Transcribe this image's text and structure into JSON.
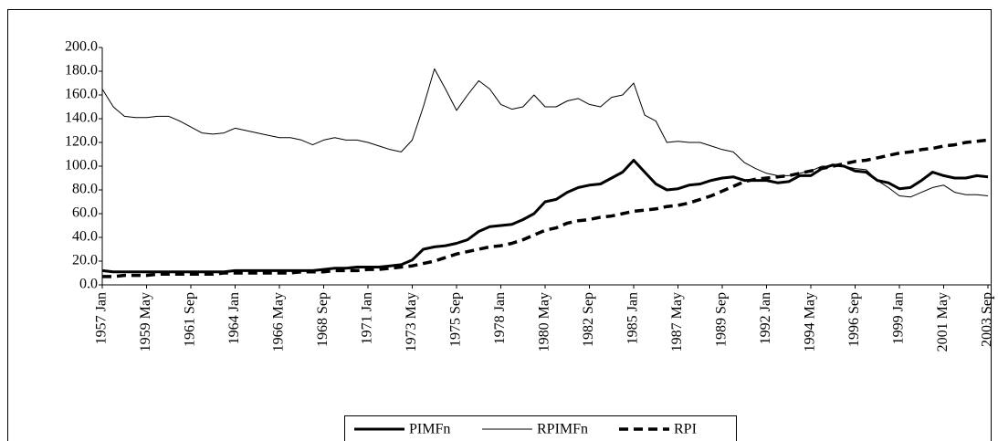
{
  "chart_data": {
    "type": "line",
    "categories": [
      "1957 Jan",
      null,
      null,
      null,
      "1959  May",
      null,
      null,
      null,
      "1961  Sep",
      null,
      null,
      null,
      "1964 Jan",
      null,
      null,
      null,
      "1966  May",
      null,
      null,
      null,
      "1968 Sep",
      null,
      null,
      null,
      "1971 Jan",
      null,
      null,
      null,
      "1973 May",
      null,
      null,
      null,
      "1975 Sep",
      null,
      null,
      null,
      "1978 Jan",
      null,
      null,
      null,
      "1980 May",
      null,
      null,
      null,
      "1982 Sep",
      null,
      null,
      null,
      "1985 Jan",
      null,
      null,
      null,
      "1987 May",
      null,
      null,
      null,
      "1989 Sep",
      null,
      null,
      null,
      "1992 Jan",
      null,
      null,
      null,
      "1994 May",
      null,
      null,
      null,
      "1996 Sep",
      null,
      null,
      null,
      "1999 Jan",
      null,
      null,
      null,
      "2001 May",
      null,
      null,
      null,
      "2003 Sep"
    ],
    "series": [
      {
        "name": "PIMFn",
        "color": "#000000",
        "values": [
          12,
          11,
          11,
          11,
          11,
          11,
          11,
          11,
          11,
          11,
          11,
          11,
          12,
          12,
          12,
          12,
          12,
          12,
          12,
          12,
          13,
          14,
          14,
          15,
          15,
          15,
          16,
          17,
          21,
          30,
          32,
          33,
          35,
          38,
          45,
          49,
          50,
          51,
          55,
          60,
          70,
          72,
          78,
          82,
          84,
          85,
          90,
          95,
          105,
          95,
          85,
          80,
          81,
          84,
          85,
          88,
          90,
          91,
          88,
          88,
          88,
          86,
          87,
          92,
          92,
          98,
          101,
          100,
          96,
          95,
          88,
          86,
          81,
          82,
          88,
          95,
          92,
          90,
          90,
          92,
          91
        ]
      },
      {
        "name": "RPIMFn",
        "color": "#000000",
        "values": [
          165,
          150,
          142,
          141,
          141,
          142,
          142,
          138,
          133,
          128,
          127,
          128,
          132,
          130,
          128,
          126,
          124,
          124,
          122,
          118,
          122,
          124,
          122,
          122,
          120,
          117,
          114,
          112,
          122,
          150,
          182,
          165,
          147,
          160,
          172,
          165,
          152,
          148,
          150,
          160,
          150,
          150,
          155,
          157,
          152,
          150,
          158,
          160,
          170,
          143,
          138,
          120,
          121,
          120,
          120,
          117,
          114,
          112,
          103,
          98,
          94,
          92,
          92,
          94,
          96,
          100,
          100,
          100,
          98,
          97,
          88,
          82,
          75,
          74,
          78,
          82,
          84,
          78,
          76,
          76,
          75
        ]
      },
      {
        "name": "RPI",
        "color": "#000000",
        "values": [
          7,
          7,
          8,
          8,
          8,
          9,
          9,
          9,
          9,
          9,
          9,
          10,
          10,
          10,
          10,
          10,
          10,
          10,
          11,
          11,
          11,
          12,
          12,
          12,
          13,
          13,
          14,
          15,
          16,
          18,
          20,
          23,
          26,
          28,
          30,
          32,
          33,
          35,
          38,
          42,
          46,
          48,
          52,
          54,
          55,
          57,
          58,
          60,
          62,
          63,
          64,
          66,
          67,
          69,
          72,
          75,
          79,
          83,
          87,
          89,
          90,
          91,
          92,
          94,
          96,
          98,
          100,
          102,
          104,
          105,
          107,
          109,
          111,
          112,
          114,
          115,
          117,
          118,
          120,
          121,
          122
        ]
      }
    ],
    "ylim": [
      0,
      200
    ],
    "yticks": [
      {
        "value": 0,
        "label": "0.0"
      },
      {
        "value": 20,
        "label": "20.0"
      },
      {
        "value": 40,
        "label": "40.0"
      },
      {
        "value": 60,
        "label": "60.0"
      },
      {
        "value": 80,
        "label": "80.0"
      },
      {
        "value": 100,
        "label": "100.0"
      },
      {
        "value": 120,
        "label": "120.0"
      },
      {
        "value": 140,
        "label": "140.0"
      },
      {
        "value": 160,
        "label": "160.0"
      },
      {
        "value": 180,
        "label": "180.0"
      },
      {
        "value": 200,
        "label": "200.0"
      }
    ],
    "legend": "bottom"
  }
}
